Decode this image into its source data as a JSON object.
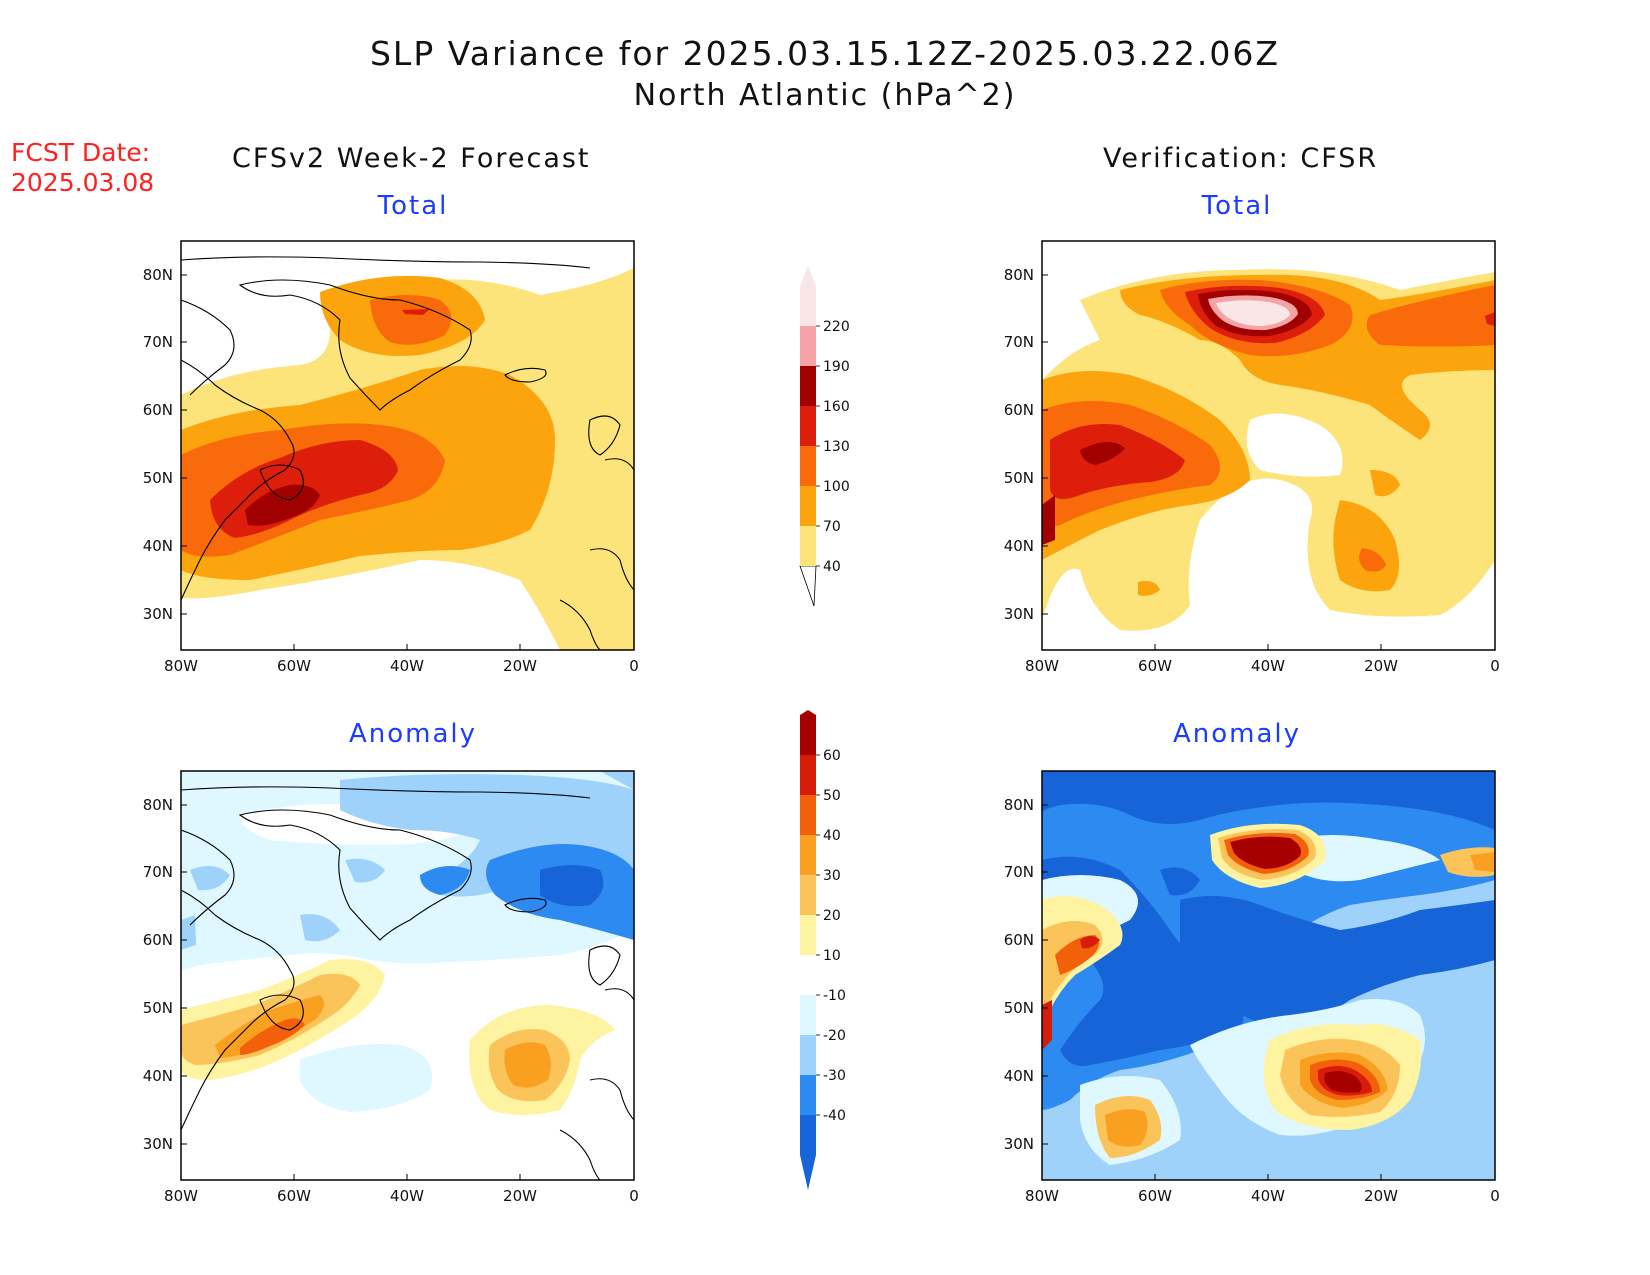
{
  "title": {
    "line1": "SLP Variance for 2025.03.15.12Z-2025.03.22.06Z",
    "line2": "North Atlantic (hPa^2)"
  },
  "forecast_date": {
    "label": "FCST Date:",
    "value": "2025.03.08"
  },
  "columns": {
    "left": "CFSv2 Week-2 Forecast",
    "right": "Verification: CFSR"
  },
  "panels": {
    "top_left_title": "Total",
    "top_right_title": "Total",
    "bottom_left_title": "Anomaly",
    "bottom_right_title": "Anomaly"
  },
  "axes": {
    "lat_labels": [
      "80N",
      "70N",
      "60N",
      "50N",
      "40N",
      "30N"
    ],
    "lon_labels": [
      "80W",
      "60W",
      "40W",
      "20W",
      "0"
    ]
  },
  "colorbars": {
    "total": {
      "levels": [
        "40",
        "70",
        "100",
        "130",
        "160",
        "190",
        "220"
      ],
      "colors": [
        "#fde47a",
        "#fba40e",
        "#f86a0a",
        "#dd1e0a",
        "#a10000",
        "#f4a3a6",
        "#fbe6e7"
      ]
    },
    "anomaly": {
      "levels": [
        "-40",
        "-30",
        "-20",
        "-10",
        "10",
        "20",
        "30",
        "40",
        "50",
        "60"
      ],
      "colors": [
        "#1664d8",
        "#2c8af0",
        "#9ed2fb",
        "#dff8ff",
        "#ffffff",
        "#fef3a0",
        "#fbc45a",
        "#f9a020",
        "#f3600c",
        "#d81c0a",
        "#a60000"
      ]
    }
  }
}
